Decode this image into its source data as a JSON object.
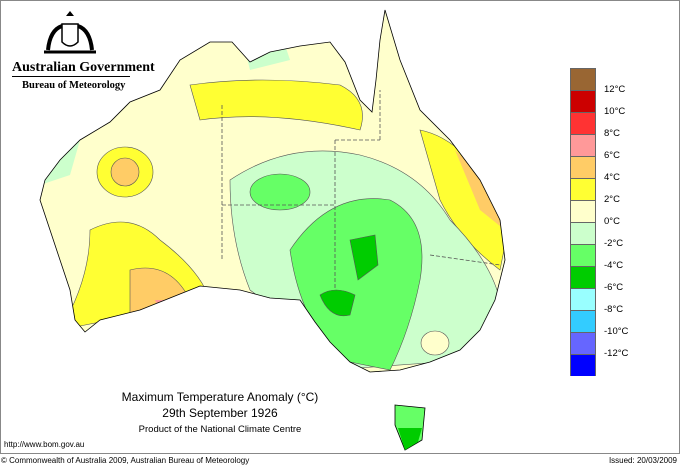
{
  "header": {
    "government": "Australian Government",
    "bureau": "Bureau of Meteorology"
  },
  "map": {
    "title": "Maximum Temperature Anomaly (°C)",
    "date": "29th September 1926",
    "product": "Product of the National Climate Centre"
  },
  "footer": {
    "url": "http://www.bom.gov.au",
    "copyright": "© Commonwealth of Australia 2009, Australian Bureau of Meteorology",
    "issued": "Issued: 20/03/2009"
  },
  "legend": {
    "colors": [
      "#996633",
      "#cc0000",
      "#ff3333",
      "#ff9999",
      "#ffcc66",
      "#ffff33",
      "#ffffcc",
      "#ccffcc",
      "#66ff66",
      "#00cc00",
      "#99ffff",
      "#33ccff",
      "#6666ff",
      "#0000ff"
    ],
    "labels": [
      "12°C",
      "10°C",
      "8°C",
      "6°C",
      "4°C",
      "2°C",
      "0°C",
      "-2°C",
      "-4°C",
      "-6°C",
      "-8°C",
      "-10°C",
      "-12°C"
    ]
  }
}
